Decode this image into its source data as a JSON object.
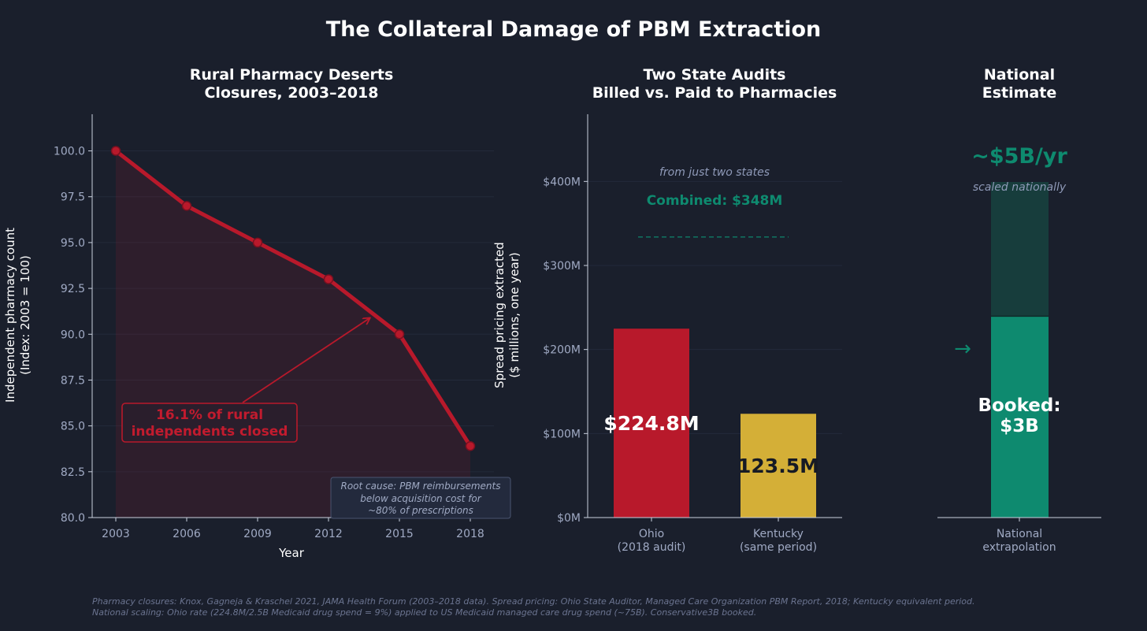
{
  "title": "The Collateral Damage of PBM Extraction",
  "colors": {
    "background": "#1a1f2c",
    "red": "#b8192b",
    "gold": "#d4af37",
    "teal": "#0e8a6f",
    "teal_dark": "#173d3c",
    "muted": "#8f9ab8"
  },
  "chart_data": [
    {
      "type": "line",
      "title_lines": [
        "Rural Pharmacy Deserts",
        "Closures, 2003–2018"
      ],
      "x": [
        2003,
        2006,
        2009,
        2012,
        2015,
        2018
      ],
      "y": [
        100.0,
        97.0,
        95.0,
        93.0,
        90.0,
        83.9
      ],
      "xlim": [
        2002,
        2019
      ],
      "ylim": [
        80,
        102
      ],
      "yticks": [
        80.0,
        82.5,
        85.0,
        87.5,
        90.0,
        92.5,
        95.0,
        97.5,
        100.0
      ],
      "ytick_labels": [
        "80.0",
        "82.5",
        "85.0",
        "87.5",
        "90.0",
        "92.5",
        "95.0",
        "97.5",
        "100.0"
      ],
      "xtick_labels": [
        "2003",
        "2006",
        "2009",
        "2012",
        "2015",
        "2018"
      ],
      "xlabel": "Year",
      "ylabel_lines": [
        "Independent pharmacy count",
        "(Index: 2003 = 100)"
      ],
      "annotation_lines": [
        "16.1% of rural",
        "independents closed"
      ],
      "note_lines": [
        "Root cause: PBM reimbursements",
        "below acquisition cost for",
        "~80% of prescriptions"
      ]
    },
    {
      "type": "bar",
      "title_lines": [
        "Two State Audits",
        "Billed vs. Paid to Pharmacies"
      ],
      "categories": [
        "Ohio",
        "Kentucky"
      ],
      "category_sublabels": [
        "(2018 audit)",
        "(same period)"
      ],
      "values": [
        224.8,
        123.5
      ],
      "value_labels": [
        "$224.8M",
        "123.5M"
      ],
      "ylim": [
        0,
        480
      ],
      "yticks": [
        0,
        100,
        200,
        300,
        400
      ],
      "ytick_labels": [
        "$0M",
        "$100M",
        "$200M",
        "$300M",
        "$400M"
      ],
      "ylabel_lines": [
        "Spread pricing extracted",
        "($ millions, one year)"
      ],
      "combined_note": "from just two states",
      "combined_label": "Combined: $348M",
      "combined_value": 348
    },
    {
      "type": "bar",
      "title_lines": [
        "National",
        "Estimate"
      ],
      "categories": [
        "National"
      ],
      "category_sublabels": [
        "extrapolation"
      ],
      "booked_value": 3,
      "estimate_value": 5,
      "booked_label_lines": [
        "Booked:",
        "$3B"
      ],
      "estimate_label": "~$5B/yr",
      "estimate_note": "scaled nationally",
      "arrow_glyph": "→"
    }
  ],
  "footnote_lines": [
    "Pharmacy closures: Knox, Gagneja & Kraschel 2021, JAMA Health Forum (2003–2018 data). Spread pricing: Ohio State Auditor, Managed Care Organization PBM Report, 2018; Kentucky equivalent period.",
    "National scaling: Ohio rate (224.8M/2.5B Medicaid drug spend = 9%) applied to US Medicaid managed care drug spend (~75B). Conservative3B booked."
  ]
}
